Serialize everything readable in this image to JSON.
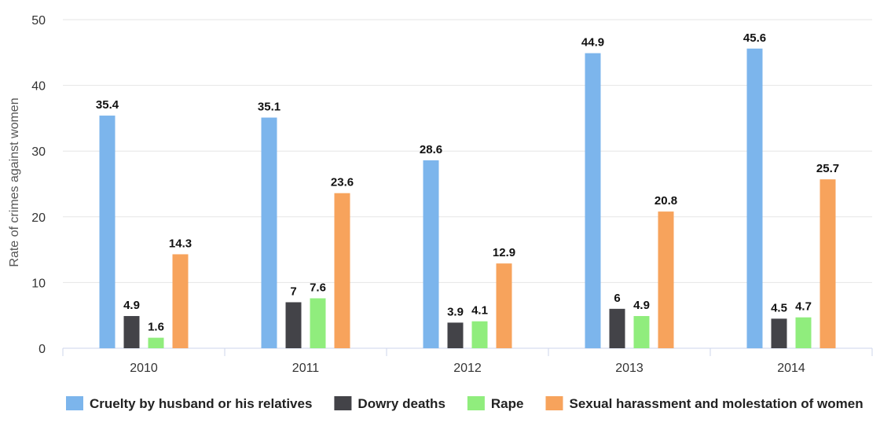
{
  "chart_data": {
    "type": "bar",
    "title": "",
    "xlabel": "",
    "ylabel": "Rate of crimes against women",
    "ylim": [
      0,
      50
    ],
    "yticks": [
      0,
      10,
      20,
      30,
      40,
      50
    ],
    "grid": true,
    "legend_position": "bottom",
    "categories": [
      "2010",
      "2011",
      "2012",
      "2013",
      "2014"
    ],
    "series": [
      {
        "name": "Cruelty by husband or his relatives",
        "color": "#7cb5ec",
        "values": [
          35.4,
          35.1,
          28.6,
          44.9,
          45.6
        ]
      },
      {
        "name": "Dowry deaths",
        "color": "#434348",
        "values": [
          4.9,
          7,
          3.9,
          6,
          4.5
        ]
      },
      {
        "name": "Rape",
        "color": "#90ed7d",
        "values": [
          1.6,
          7.6,
          4.1,
          4.9,
          4.7
        ]
      },
      {
        "name": "Sexual harassment and molestation of women",
        "color": "#f7a35c",
        "values": [
          14.3,
          23.6,
          12.9,
          20.8,
          25.7
        ]
      }
    ]
  }
}
